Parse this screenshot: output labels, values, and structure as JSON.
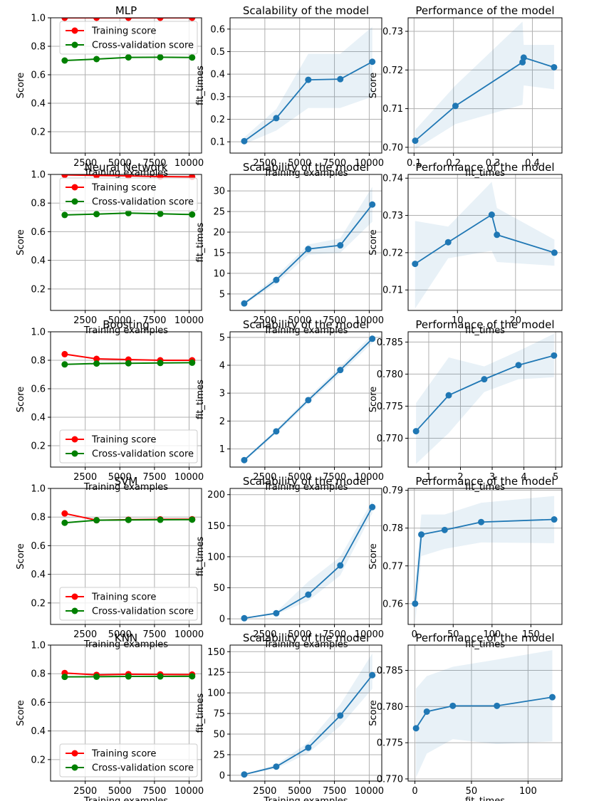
{
  "figure_labels": {
    "score_axis": "Score",
    "training_examples_axis": "Training examples",
    "fit_times_axis": "fit_times",
    "scalability_title": "Scalability of the model",
    "performance_title": "Performance of the model",
    "training_legend": "Training score",
    "cv_legend": "Cross-validation score"
  },
  "chart_data": [
    {
      "type": "line",
      "row": 0,
      "kind": "learning",
      "title": "MLP",
      "xlabel": "Training examples",
      "ylabel": "Score",
      "xlim": [
        0,
        10900
      ],
      "ylim": [
        0.05,
        1.0
      ],
      "xticks": [
        2500,
        5000,
        7500,
        10000
      ],
      "yticks": [
        0.2,
        0.4,
        0.6,
        0.8,
        1.0
      ],
      "legend": "top",
      "x": [
        1020,
        3320,
        5620,
        7920,
        10220
      ],
      "series": [
        {
          "name": "Training score",
          "color": "#ff0000",
          "values": [
            1.0,
            1.0,
            1.0,
            1.0,
            1.0
          ]
        },
        {
          "name": "Cross-validation score",
          "color": "#008000",
          "values": [
            0.7,
            0.71,
            0.722,
            0.723,
            0.721
          ]
        }
      ]
    },
    {
      "type": "line",
      "row": 0,
      "kind": "scalability",
      "title": "Scalability of the model",
      "xlabel": "Training examples",
      "ylabel": "fit_times",
      "xlim": [
        0,
        10900
      ],
      "ylim": [
        0.05,
        0.65
      ],
      "xticks": [
        2500,
        5000,
        7500,
        10000
      ],
      "yticks": [
        0.1,
        0.2,
        0.3,
        0.4,
        0.5,
        0.6
      ],
      "x": [
        1020,
        3320,
        5620,
        7920,
        10220
      ],
      "y": [
        0.103,
        0.205,
        0.375,
        0.378,
        0.455
      ],
      "y_lower": [
        0.09,
        0.15,
        0.25,
        0.25,
        0.3
      ],
      "y_upper": [
        0.12,
        0.245,
        0.49,
        0.49,
        0.61
      ]
    },
    {
      "type": "line",
      "row": 0,
      "kind": "performance",
      "title": "Performance of the model",
      "xlabel": "fit_times",
      "ylabel": "Score",
      "xlim": [
        0.085,
        0.475
      ],
      "ylim": [
        0.6985,
        0.7335
      ],
      "xticks": [
        0.1,
        0.2,
        0.3,
        0.4
      ],
      "yticks": [
        0.7,
        0.71,
        0.72,
        0.73
      ],
      "x": [
        0.103,
        0.205,
        0.375,
        0.378,
        0.455
      ],
      "y": [
        0.7017,
        0.7107,
        0.722,
        0.7232,
        0.7207
      ],
      "y_lower": [
        0.6995,
        0.706,
        0.711,
        0.716,
        0.715
      ],
      "y_upper": [
        0.7045,
        0.716,
        0.7325,
        0.7265,
        0.7265
      ]
    },
    {
      "type": "line",
      "row": 1,
      "kind": "learning",
      "title": "Neural Network",
      "xlabel": "Training examples",
      "ylabel": "Score",
      "xlim": [
        0,
        10900
      ],
      "ylim": [
        0.05,
        1.0
      ],
      "xticks": [
        2500,
        5000,
        7500,
        10000
      ],
      "yticks": [
        0.2,
        0.4,
        0.6,
        0.8,
        1.0
      ],
      "legend": "top",
      "x": [
        1020,
        3320,
        5620,
        7920,
        10220
      ],
      "series": [
        {
          "name": "Training score",
          "color": "#ff0000",
          "values": [
            0.997,
            0.993,
            0.99,
            0.985,
            0.983
          ]
        },
        {
          "name": "Cross-validation score",
          "color": "#008000",
          "values": [
            0.717,
            0.723,
            0.73,
            0.725,
            0.72
          ]
        }
      ]
    },
    {
      "type": "line",
      "row": 1,
      "kind": "scalability",
      "title": "Scalability of the model",
      "xlabel": "Training examples",
      "ylabel": "fit_times",
      "xlim": [
        0,
        10900
      ],
      "ylim": [
        1.0,
        34.0
      ],
      "xticks": [
        2500,
        5000,
        7500,
        10000
      ],
      "yticks": [
        5,
        10,
        15,
        20,
        25,
        30
      ],
      "x": [
        1020,
        3320,
        5620,
        7920,
        10220
      ],
      "y": [
        2.7,
        8.4,
        15.9,
        16.8,
        26.7
      ],
      "y_lower": [
        2.4,
        7.5,
        14.5,
        15.0,
        22.5
      ],
      "y_upper": [
        3.0,
        9.3,
        17.0,
        18.5,
        31.0
      ]
    },
    {
      "type": "line",
      "row": 1,
      "kind": "performance",
      "title": "Performance of the model",
      "xlabel": "fit_times",
      "ylabel": "Score",
      "xlim": [
        1.5,
        28.0
      ],
      "ylim": [
        0.7045,
        0.741
      ],
      "xticks": [
        10,
        20
      ],
      "yticks": [
        0.71,
        0.72,
        0.73,
        0.74
      ],
      "x": [
        2.7,
        8.4,
        15.9,
        16.8,
        26.7
      ],
      "y": [
        0.717,
        0.7228,
        0.7302,
        0.7248,
        0.72
      ],
      "y_lower": [
        0.705,
        0.7185,
        0.7205,
        0.7175,
        0.7165
      ],
      "y_upper": [
        0.7285,
        0.727,
        0.739,
        0.732,
        0.7235
      ]
    },
    {
      "type": "line",
      "row": 2,
      "kind": "learning",
      "title": "Boosting",
      "xlabel": "Training examples",
      "ylabel": "Score",
      "xlim": [
        0,
        10900
      ],
      "ylim": [
        0.05,
        1.0
      ],
      "xticks": [
        2500,
        5000,
        7500,
        10000
      ],
      "yticks": [
        0.2,
        0.4,
        0.6,
        0.8,
        1.0
      ],
      "legend": "bottom",
      "x": [
        1020,
        3320,
        5620,
        7920,
        10220
      ],
      "series": [
        {
          "name": "Training score",
          "color": "#ff0000",
          "values": [
            0.843,
            0.81,
            0.805,
            0.8,
            0.8
          ]
        },
        {
          "name": "Cross-validation score",
          "color": "#008000",
          "values": [
            0.771,
            0.777,
            0.779,
            0.781,
            0.783
          ]
        }
      ]
    },
    {
      "type": "line",
      "row": 2,
      "kind": "scalability",
      "title": "Scalability of the model",
      "xlabel": "Training examples",
      "ylabel": "fit_times",
      "xlim": [
        0,
        10900
      ],
      "ylim": [
        0.35,
        5.2
      ],
      "xticks": [
        2500,
        5000,
        7500,
        10000
      ],
      "yticks": [
        1,
        2,
        3,
        4,
        5
      ],
      "x": [
        1020,
        3320,
        5620,
        7920,
        10220
      ],
      "y": [
        0.6,
        1.63,
        2.75,
        3.83,
        4.95
      ],
      "y_lower": [
        0.55,
        1.55,
        2.65,
        3.7,
        4.8
      ],
      "y_upper": [
        0.65,
        1.7,
        2.85,
        3.95,
        5.1
      ]
    },
    {
      "type": "line",
      "row": 2,
      "kind": "performance",
      "title": "Performance of the model",
      "xlabel": "fit_times",
      "ylabel": "Score",
      "xlim": [
        0.35,
        5.2
      ],
      "ylim": [
        0.7655,
        0.7866
      ],
      "xticks": [
        1,
        2,
        3,
        4,
        5
      ],
      "yticks": [
        0.77,
        0.775,
        0.78,
        0.785
      ],
      "x": [
        0.6,
        1.63,
        2.75,
        3.83,
        4.95
      ],
      "y": [
        0.7711,
        0.7767,
        0.7792,
        0.7814,
        0.7829
      ],
      "y_lower": [
        0.766,
        0.7708,
        0.7772,
        0.7792,
        0.7795
      ],
      "y_upper": [
        0.7755,
        0.7826,
        0.7812,
        0.7836,
        0.7863
      ]
    },
    {
      "type": "line",
      "row": 3,
      "kind": "learning",
      "title": "SVM",
      "xlabel": "Training examples",
      "ylabel": "Score",
      "xlim": [
        0,
        10900
      ],
      "ylim": [
        0.05,
        1.0
      ],
      "xticks": [
        2500,
        5000,
        7500,
        10000
      ],
      "yticks": [
        0.2,
        0.4,
        0.6,
        0.8,
        1.0
      ],
      "legend": "bottom",
      "x": [
        1020,
        3320,
        5620,
        7920,
        10220
      ],
      "series": [
        {
          "name": "Training score",
          "color": "#ff0000",
          "values": [
            0.825,
            0.778,
            0.782,
            0.784,
            0.785
          ]
        },
        {
          "name": "Cross-validation score",
          "color": "#008000",
          "values": [
            0.76,
            0.778,
            0.78,
            0.781,
            0.782
          ]
        }
      ]
    },
    {
      "type": "line",
      "row": 3,
      "kind": "scalability",
      "title": "Scalability of the model",
      "xlabel": "Training examples",
      "ylabel": "fit_times",
      "xlim": [
        0,
        10900
      ],
      "ylim": [
        -9,
        210
      ],
      "xticks": [
        2500,
        5000,
        7500,
        10000
      ],
      "yticks": [
        0,
        50,
        100,
        150,
        200
      ],
      "x": [
        1020,
        3320,
        5620,
        7920,
        10220
      ],
      "y": [
        1,
        9,
        39,
        86,
        180
      ],
      "y_lower": [
        0.5,
        7,
        29,
        70,
        170
      ],
      "y_upper": [
        1.5,
        11,
        60,
        100,
        190
      ]
    },
    {
      "type": "line",
      "row": 3,
      "kind": "performance",
      "title": "Performance of the model",
      "xlabel": "fit_times",
      "ylabel": "Score",
      "xlim": [
        -8,
        190
      ],
      "ylim": [
        0.7545,
        0.7905
      ],
      "xticks": [
        0,
        50,
        100,
        150
      ],
      "yticks": [
        0.76,
        0.77,
        0.78,
        0.79
      ],
      "x": [
        1,
        9,
        39,
        86,
        180
      ],
      "y": [
        0.76,
        0.7783,
        0.7795,
        0.7816,
        0.7823
      ],
      "y_lower": [
        0.7545,
        0.7726,
        0.7745,
        0.7762,
        0.776
      ],
      "y_upper": [
        0.7645,
        0.7836,
        0.7836,
        0.7867,
        0.7885
      ]
    },
    {
      "type": "line",
      "row": 4,
      "kind": "learning",
      "title": "KNN",
      "xlabel": "Training examples",
      "ylabel": "Score",
      "xlim": [
        0,
        10900
      ],
      "ylim": [
        0.05,
        1.0
      ],
      "xticks": [
        2500,
        5000,
        7500,
        10000
      ],
      "yticks": [
        0.2,
        0.4,
        0.6,
        0.8,
        1.0
      ],
      "legend": "bottom",
      "x": [
        1020,
        3320,
        5620,
        7920,
        10220
      ],
      "series": [
        {
          "name": "Training score",
          "color": "#ff0000",
          "values": [
            0.805,
            0.792,
            0.797,
            0.795,
            0.794
          ]
        },
        {
          "name": "Cross-validation score",
          "color": "#008000",
          "values": [
            0.778,
            0.779,
            0.781,
            0.781,
            0.782
          ]
        }
      ]
    },
    {
      "type": "line",
      "row": 4,
      "kind": "scalability",
      "title": "Scalability of the model",
      "xlabel": "Training examples",
      "ylabel": "fit_times",
      "xlim": [
        0,
        10900
      ],
      "ylim": [
        -7,
        158
      ],
      "xticks": [
        2500,
        5000,
        7500,
        10000
      ],
      "yticks": [
        0,
        25,
        50,
        75,
        100,
        125,
        150
      ],
      "x": [
        1020,
        3320,
        5620,
        7920,
        10220
      ],
      "y": [
        1,
        10.5,
        33.5,
        72.5,
        121.5
      ],
      "y_lower": [
        0.5,
        8,
        27,
        60,
        105
      ],
      "y_upper": [
        1.5,
        13,
        40,
        86,
        148
      ]
    },
    {
      "type": "line",
      "row": 4,
      "kind": "performance",
      "title": "Performance of the model",
      "xlabel": "fit_times",
      "ylabel": "Score",
      "xlim": [
        -6,
        130
      ],
      "ylim": [
        0.7697,
        0.7885
      ],
      "xticks": [
        0,
        50,
        100
      ],
      "yticks": [
        0.77,
        0.775,
        0.78,
        0.785
      ],
      "x": [
        1,
        10.5,
        33.5,
        72.5,
        121.5
      ],
      "y": [
        0.777,
        0.7793,
        0.7801,
        0.7801,
        0.7813
      ],
      "y_lower": [
        0.7702,
        0.7735,
        0.7755,
        0.7748,
        0.7752
      ],
      "y_upper": [
        0.7825,
        0.7842,
        0.7855,
        0.7865,
        0.7878
      ]
    }
  ]
}
